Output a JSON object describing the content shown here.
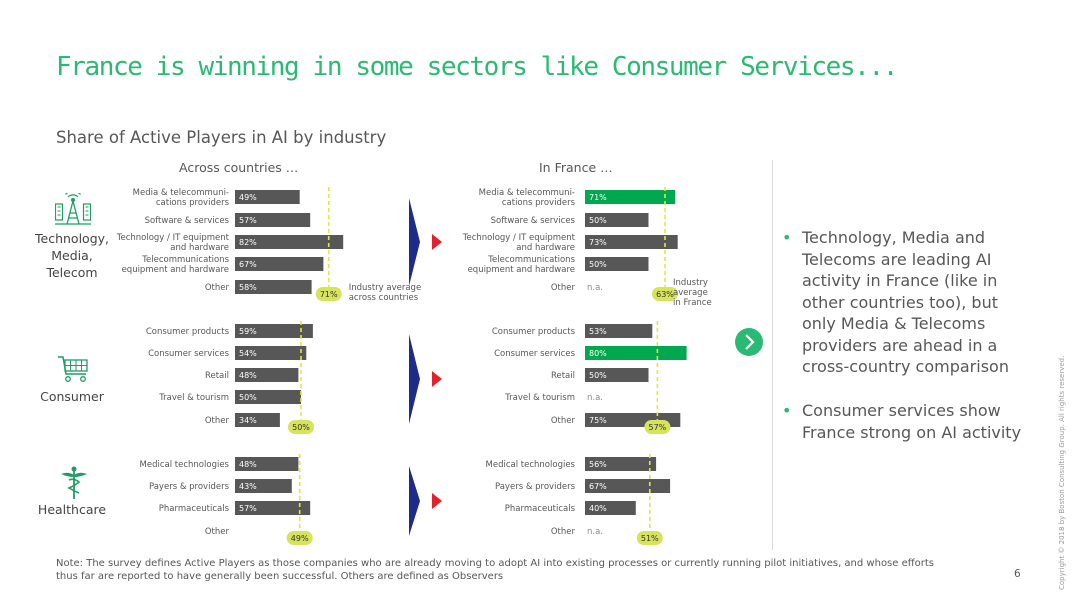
{
  "title": "France is winning in some sectors like Consumer Services...",
  "subtitle": "Share of Active Players in AI by industry",
  "colors": {
    "accent": "#29ba74",
    "bar_dark": "#575757",
    "bar_highlight": "#00a84f",
    "avg_line": "#e3e547",
    "avg_badge": "#d7e35a",
    "flag_blue": "#1f2b88",
    "flag_red": "#e2212d"
  },
  "columns": {
    "global": "Across countries …",
    "france": "In France …"
  },
  "sectors": [
    {
      "name": "Technology, Media, Telecom",
      "icon": "tower-antenna-icon"
    },
    {
      "name": "Consumer",
      "icon": "shopping-cart-icon"
    },
    {
      "name": "Healthcare",
      "icon": "caduceus-icon"
    }
  ],
  "chart_data": [
    {
      "type": "bar",
      "title": "Across countries …",
      "unit": "%",
      "groups": [
        {
          "sector": "Technology, Media, Telecom",
          "categories": [
            "Media & telecommuni-\ncations providers",
            "Software & services",
            "Technology / IT equipment\nand hardware",
            "Telecommunications\nequipment and hardware",
            "Other"
          ],
          "values": [
            49,
            57,
            82,
            67,
            58
          ],
          "average": 71,
          "average_label": "Industry average\nacross countries"
        },
        {
          "sector": "Consumer",
          "categories": [
            "Consumer products",
            "Consumer services",
            "Retail",
            "Travel & tourism",
            "Other"
          ],
          "values": [
            59,
            54,
            48,
            50,
            34
          ],
          "average": 50
        },
        {
          "sector": "Healthcare",
          "categories": [
            "Medical technologies",
            "Payers & providers",
            "Pharmaceuticals",
            "Other"
          ],
          "values": [
            48,
            43,
            57,
            null
          ],
          "average": 49
        }
      ]
    },
    {
      "type": "bar",
      "title": "In France …",
      "unit": "%",
      "na_label": "n.a.",
      "groups": [
        {
          "sector": "Technology, Media, Telecom",
          "categories": [
            "Media & telecommuni-\ncations providers",
            "Software & services",
            "Technology / IT equipment\nand hardware",
            "Telecommunications\nequipment and hardware",
            "Other"
          ],
          "values": [
            71,
            50,
            73,
            50,
            null
          ],
          "highlight": [
            true,
            false,
            false,
            false,
            false
          ],
          "average": 63,
          "average_label": "Industry\naverage\nin France"
        },
        {
          "sector": "Consumer",
          "categories": [
            "Consumer products",
            "Consumer services",
            "Retail",
            "Travel & tourism",
            "Other"
          ],
          "values": [
            53,
            80,
            50,
            null,
            75
          ],
          "highlight": [
            false,
            true,
            false,
            false,
            false
          ],
          "average": 57
        },
        {
          "sector": "Healthcare",
          "categories": [
            "Medical technologies",
            "Payers & providers",
            "Pharmaceuticals",
            "Other"
          ],
          "values": [
            56,
            67,
            40,
            null
          ],
          "highlight": [
            false,
            false,
            false,
            false
          ],
          "average": 51
        }
      ]
    }
  ],
  "bullets": [
    "Technology, Media and Telecoms are leading AI activity in France (like in other countries too), but only Media & Telecoms providers are ahead in a cross-country comparison",
    "Consumer services show France strong on AI activity"
  ],
  "note": "Note: The survey defines Active Players as those companies who are already moving to adopt AI into existing processes or currently running pilot initiatives, and whose efforts thus far are reported to have generally been successful. Others are defined as Observers",
  "page_number": "6",
  "copyright": "Copyright © 2018 by Boston Consulting Group. All rights reserved."
}
